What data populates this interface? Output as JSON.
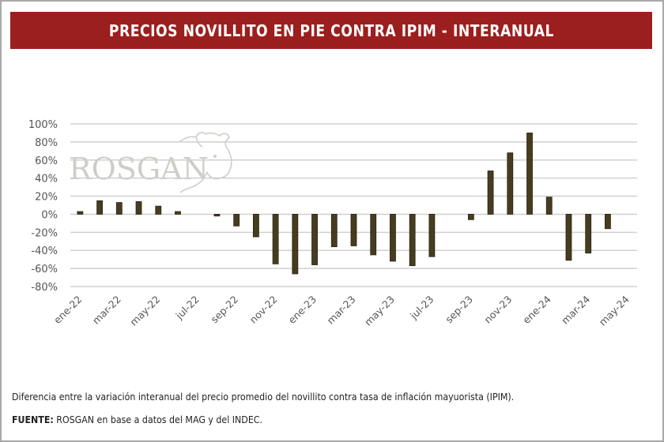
{
  "banner": {
    "title": "PRECIOS NOVILLITO EN PIE CONTRA IPIM - INTERANUAL",
    "color": "#9b1f1e"
  },
  "watermark": {
    "text": "ROSGAN",
    "icon": "bull-head-icon"
  },
  "chart_data": {
    "type": "bar",
    "title": "PRECIOS NOVILLITO EN PIE CONTRA IPIM - INTERANUAL",
    "xlabel": "",
    "ylabel": "",
    "ylim": [
      -80,
      100
    ],
    "y_ticks": [
      100,
      80,
      60,
      40,
      20,
      0,
      -20,
      -40,
      -60,
      -80
    ],
    "y_tick_labels": [
      "100%",
      "80%",
      "60%",
      "40%",
      "20%",
      "0%",
      "-20%",
      "-40%",
      "-60%",
      "-80%"
    ],
    "grid": true,
    "bar_color": "#463c1f",
    "categories": [
      "ene-22",
      "feb-22",
      "mar-22",
      "abr-22",
      "may-22",
      "jun-22",
      "jul-22",
      "ago-22",
      "sep-22",
      "oct-22",
      "nov-22",
      "dic-22",
      "ene-23",
      "feb-23",
      "mar-23",
      "abr-23",
      "may-23",
      "jun-23",
      "jul-23",
      "ago-23",
      "sep-23",
      "oct-23",
      "nov-23",
      "dic-23",
      "ene-24",
      "feb-24",
      "mar-24",
      "abr-24",
      "may-24"
    ],
    "x_tick_labels": [
      "ene-22",
      "mar-22",
      "may-22",
      "jul-22",
      "sep-22",
      "nov-22",
      "ene-23",
      "mar-23",
      "may-23",
      "jul-23",
      "sep-23",
      "nov-23",
      "ene-24",
      "mar-24",
      "may-24"
    ],
    "values": [
      3,
      15,
      13,
      14,
      9,
      3,
      null,
      -2,
      -13,
      -25,
      -55,
      -66,
      -56,
      -36,
      -35,
      -45,
      -52,
      -57,
      -47,
      null,
      -6,
      48,
      68,
      90,
      19,
      -51,
      -43,
      -16,
      null
    ]
  },
  "footer": {
    "note": "Diferencia entre la variación interanual del precio promedio del novillito contra tasa de inflación mayuorista (IPIM).",
    "source_label": "FUENTE:",
    "source_text": " ROSGAN en base a datos del MAG y del INDEC."
  }
}
